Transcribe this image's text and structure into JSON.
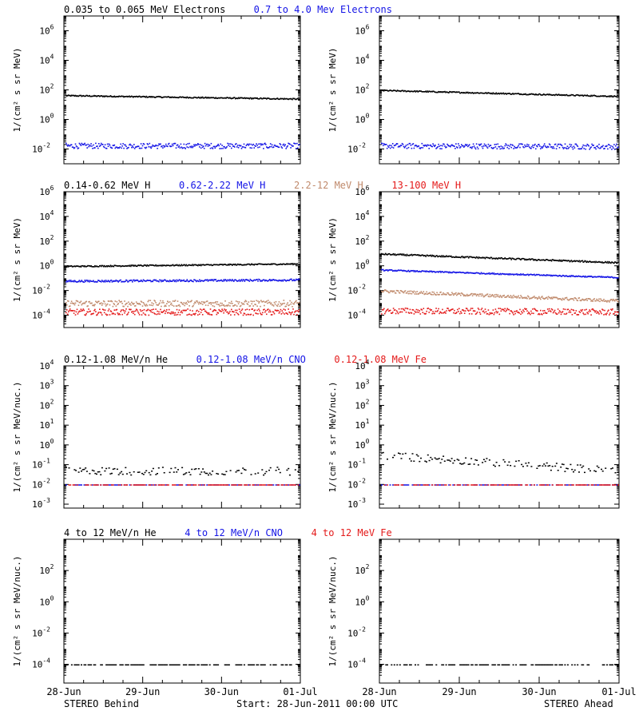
{
  "colors": {
    "black": "#000000",
    "blue": "#1414e6",
    "tan": "#c08a6c",
    "red": "#e41a1a"
  },
  "footer": {
    "left": "STEREO Behind",
    "center": "Start: 28-Jun-2011 00:00 UTC",
    "right": "STEREO Ahead"
  },
  "chart_data": {
    "type": "scatter",
    "x_tick_labels": [
      "28-Jun",
      "29-Jun",
      "30-Jun",
      "01-Jul"
    ],
    "x_range_days": [
      0,
      3
    ],
    "rows": [
      {
        "legend": [
          {
            "label": "0.035 to 0.065 MeV Electrons",
            "color": "black"
          },
          {
            "label": "0.7 to 4.0 Mev Electrons",
            "color": "blue"
          }
        ],
        "ylabel": "1/(cm² s sr MeV)",
        "ylog_range": [
          -3,
          7
        ],
        "ticks": [
          {
            "b": 10,
            "e": "-2"
          },
          {
            "b": 10,
            "e": "0"
          },
          {
            "b": 10,
            "e": "2"
          },
          {
            "b": 10,
            "e": "4"
          },
          {
            "b": 10,
            "e": "6"
          }
        ],
        "panels": [
          {
            "name": "behind",
            "series": [
              {
                "color": "black",
                "log_start": 1.65,
                "log_end": 1.42,
                "noise": 0.04
              },
              {
                "color": "blue",
                "log_start": -1.75,
                "log_end": -1.75,
                "noise": 0.18
              }
            ]
          },
          {
            "name": "ahead",
            "series": [
              {
                "color": "black",
                "log_start": 2.0,
                "log_end": 1.6,
                "noise": 0.04
              },
              {
                "color": "blue",
                "log_start": -1.75,
                "log_end": -1.8,
                "noise": 0.18
              }
            ]
          }
        ]
      },
      {
        "legend": [
          {
            "label": "0.14-0.62 MeV H",
            "color": "black"
          },
          {
            "label": "0.62-2.22 MeV H",
            "color": "blue"
          },
          {
            "label": "2.2-12 MeV H",
            "color": "tan"
          },
          {
            "label": "13-100 MeV H",
            "color": "red"
          }
        ],
        "ylabel": "1/(cm² s sr MeV)",
        "ylog_range": [
          -5,
          6
        ],
        "ticks": [
          {
            "b": 10,
            "e": "-4"
          },
          {
            "b": 10,
            "e": "-2"
          },
          {
            "b": 10,
            "e": "0"
          },
          {
            "b": 10,
            "e": "2"
          },
          {
            "b": 10,
            "e": "4"
          },
          {
            "b": 10,
            "e": "6"
          }
        ],
        "panels": [
          {
            "name": "behind",
            "series": [
              {
                "color": "black",
                "log_start": 0.0,
                "log_end": 0.2,
                "noise": 0.05
              },
              {
                "color": "blue",
                "log_start": -1.2,
                "log_end": -1.1,
                "noise": 0.08
              },
              {
                "color": "tan",
                "log_start": -3.0,
                "log_end": -3.0,
                "noise": 0.25
              },
              {
                "color": "red",
                "log_start": -3.7,
                "log_end": -3.7,
                "noise": 0.25
              }
            ]
          },
          {
            "name": "ahead",
            "series": [
              {
                "color": "black",
                "log_start": 1.0,
                "log_end": 0.3,
                "noise": 0.06
              },
              {
                "color": "blue",
                "log_start": -0.3,
                "log_end": -0.9,
                "noise": 0.05
              },
              {
                "color": "tan",
                "log_start": -2.0,
                "log_end": -2.8,
                "noise": 0.12
              },
              {
                "color": "red",
                "log_start": -3.6,
                "log_end": -3.7,
                "noise": 0.25
              }
            ]
          }
        ]
      },
      {
        "legend": [
          {
            "label": "0.12-1.08 MeV/n He",
            "color": "black"
          },
          {
            "label": "0.12-1.08 MeV/n CNO",
            "color": "blue"
          },
          {
            "label": "0.12-1.08 MeV Fe",
            "color": "red"
          }
        ],
        "ylabel": "1/(cm² s sr MeV/nuc.)",
        "ylog_range": [
          -3.2,
          4
        ],
        "ticks": [
          {
            "b": 10,
            "e": "-3"
          },
          {
            "b": 10,
            "e": "-2"
          },
          {
            "b": 10,
            "e": "-1"
          },
          {
            "b": 10,
            "e": "0"
          },
          {
            "b": 10,
            "e": "1"
          },
          {
            "b": 10,
            "e": "2"
          },
          {
            "b": 10,
            "e": "3"
          },
          {
            "b": 10,
            "e": "4"
          }
        ],
        "panels": [
          {
            "name": "behind",
            "series": [
              {
                "color": "black",
                "log_start": -1.3,
                "log_end": -1.3,
                "noise": 0.2,
                "sparse": true
              },
              {
                "color": "blue",
                "log_start": -2.0,
                "log_end": -2.0,
                "noise": 0.0,
                "sparse": true
              },
              {
                "color": "red",
                "log_start": -2.0,
                "log_end": -2.0,
                "noise": 0.0,
                "sparse": true
              }
            ]
          },
          {
            "name": "ahead",
            "series": [
              {
                "color": "black",
                "log_start": -0.5,
                "log_end": -1.3,
                "noise": 0.2,
                "sparse": true
              },
              {
                "color": "blue",
                "log_start": -2.0,
                "log_end": -2.0,
                "noise": 0.0,
                "sparse": true
              },
              {
                "color": "red",
                "log_start": -2.0,
                "log_end": -2.0,
                "noise": 0.0,
                "sparse": true
              }
            ]
          }
        ]
      },
      {
        "legend": [
          {
            "label": "4 to 12 MeV/n He",
            "color": "black"
          },
          {
            "label": "4 to 12 MeV/n CNO",
            "color": "blue"
          },
          {
            "label": "4 to 12 MeV Fe",
            "color": "red"
          }
        ],
        "ylabel": "1/(cm² s sr MeV/nuc.)",
        "ylog_range": [
          -5.2,
          4
        ],
        "ticks": [
          {
            "b": 10,
            "e": "-4"
          },
          {
            "b": 10,
            "e": "-2"
          },
          {
            "b": 10,
            "e": "0"
          },
          {
            "b": 10,
            "e": "2"
          }
        ],
        "panels": [
          {
            "name": "behind",
            "series": [
              {
                "color": "black",
                "log_start": -4.0,
                "log_end": -4.0,
                "noise": 0.0,
                "sparse": true
              }
            ]
          },
          {
            "name": "ahead",
            "series": [
              {
                "color": "black",
                "log_start": -4.0,
                "log_end": -4.0,
                "noise": 0.0,
                "sparse": true
              }
            ]
          }
        ]
      }
    ]
  }
}
